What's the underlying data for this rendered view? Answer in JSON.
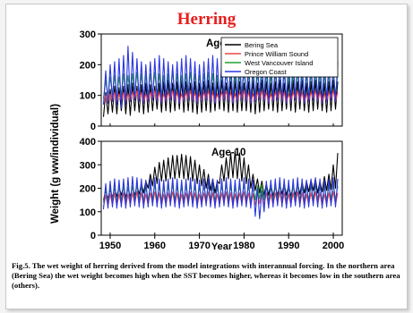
{
  "page": {
    "title": "Herring",
    "caption": "Fig.5. The wet weight of herring derived from the model integrations with interannual forcing. In the northern area (Bering Sea) the wet weight becomes high when the SST becomes higher, whereas it becomes low in the southern area (others)."
  },
  "chart_data": [
    {
      "type": "line",
      "panel_label": "Age-5",
      "ylabel": "Weight (g ww/individual)",
      "xlabel": "",
      "xlim": [
        1948,
        2002
      ],
      "ylim": [
        0,
        300
      ],
      "yticks": [
        0,
        100,
        200,
        300
      ],
      "xticks": [],
      "legend": "top-right",
      "grid": false,
      "series": [
        {
          "name": "Bering Sea",
          "color": "#000000",
          "annual_low": [
            30,
            40,
            45,
            40,
            50,
            40,
            35,
            50,
            45,
            40,
            45,
            50,
            55,
            45,
            50,
            45,
            50,
            55,
            45,
            50,
            45,
            40,
            45,
            50,
            45,
            50,
            55,
            50,
            45,
            50,
            45,
            50,
            50,
            45,
            40,
            45,
            50,
            55,
            50,
            45,
            50,
            55,
            50,
            45,
            55,
            50,
            45,
            50,
            55,
            50,
            45,
            50,
            55
          ],
          "annual_high": [
            110,
            120,
            130,
            125,
            130,
            135,
            140,
            130,
            135,
            140,
            135,
            130,
            140,
            145,
            150,
            140,
            145,
            150,
            145,
            140,
            145,
            140,
            145,
            150,
            140,
            145,
            150,
            140,
            145,
            150,
            145,
            140,
            145,
            150,
            140,
            150,
            145,
            140,
            145,
            150,
            140,
            145,
            150,
            145,
            150,
            140,
            145,
            150,
            145,
            140,
            145,
            150,
            145
          ]
        },
        {
          "name": "Prince William Sound",
          "color": "#e8484c",
          "annual_low": [
            70,
            75,
            80,
            75,
            80,
            75,
            80,
            85,
            80,
            75,
            80,
            85,
            80,
            75,
            80,
            85,
            80,
            75,
            80,
            85,
            80,
            75,
            80,
            85,
            80,
            75,
            80,
            85,
            80,
            75,
            80,
            85,
            80,
            75,
            80,
            85,
            80,
            75,
            80,
            85,
            80,
            75,
            80,
            85,
            80,
            75,
            80,
            85,
            80,
            75,
            80,
            85,
            80
          ],
          "annual_high": [
            100,
            105,
            110,
            105,
            110,
            105,
            110,
            115,
            110,
            105,
            110,
            115,
            110,
            105,
            110,
            115,
            110,
            105,
            110,
            115,
            110,
            105,
            110,
            115,
            110,
            105,
            110,
            115,
            110,
            105,
            110,
            115,
            110,
            105,
            110,
            115,
            110,
            105,
            110,
            115,
            110,
            105,
            110,
            115,
            110,
            105,
            110,
            115,
            110,
            105,
            110,
            115,
            110
          ]
        },
        {
          "name": "West Vancouver Island",
          "color": "#22a032",
          "annual_low": [
            90,
            95,
            100,
            95,
            100,
            95,
            100,
            105,
            100,
            95,
            100,
            105,
            100,
            95,
            100,
            105,
            100,
            95,
            100,
            105,
            100,
            95,
            100,
            105,
            100,
            95,
            100,
            105,
            100,
            95,
            100,
            105,
            100,
            95,
            100,
            105,
            100,
            95,
            100,
            105,
            100,
            95,
            100,
            105,
            100,
            95,
            100,
            105,
            100,
            95,
            100,
            105,
            100
          ],
          "annual_high": [
            150,
            160,
            165,
            160,
            170,
            165,
            170,
            175,
            170,
            165,
            170,
            175,
            170,
            165,
            170,
            175,
            170,
            165,
            170,
            175,
            170,
            165,
            170,
            175,
            170,
            165,
            170,
            175,
            170,
            165,
            170,
            175,
            170,
            165,
            170,
            175,
            170,
            165,
            170,
            175,
            170,
            165,
            170,
            175,
            170,
            165,
            170,
            175,
            170,
            165,
            170,
            175,
            170
          ]
        },
        {
          "name": "Oregon Coast",
          "color": "#2a36e0",
          "annual_low": [
            70,
            75,
            80,
            70,
            60,
            70,
            80,
            85,
            80,
            75,
            80,
            85,
            80,
            75,
            80,
            85,
            80,
            75,
            80,
            85,
            80,
            75,
            80,
            85,
            80,
            75,
            80,
            85,
            80,
            75,
            80,
            85,
            80,
            75,
            80,
            85,
            80,
            75,
            80,
            85,
            80,
            75,
            80,
            85,
            80,
            75,
            80,
            85,
            80,
            75,
            80,
            85,
            80
          ],
          "annual_high": [
            180,
            200,
            210,
            220,
            230,
            260,
            240,
            220,
            210,
            200,
            210,
            220,
            230,
            220,
            210,
            200,
            210,
            220,
            230,
            220,
            210,
            200,
            210,
            220,
            230,
            220,
            210,
            200,
            210,
            220,
            230,
            220,
            210,
            200,
            210,
            220,
            230,
            220,
            210,
            200,
            210,
            220,
            230,
            220,
            210,
            200,
            210,
            220,
            230,
            220,
            210,
            200,
            210
          ]
        }
      ]
    },
    {
      "type": "line",
      "panel_label": "Age-10",
      "xlabel": "Year",
      "ylabel": "",
      "xlim": [
        1948,
        2002
      ],
      "ylim": [
        0,
        400
      ],
      "yticks": [
        0,
        100,
        200,
        300,
        400
      ],
      "xticks": [
        1950,
        1960,
        1970,
        1980,
        1990,
        2000
      ],
      "legend": "none",
      "grid": false,
      "series": [
        {
          "name": "Bering Sea",
          "color": "#000000",
          "annual_low": [
            150,
            155,
            160,
            165,
            170,
            160,
            165,
            170,
            175,
            180,
            200,
            210,
            220,
            230,
            230,
            240,
            240,
            245,
            240,
            235,
            230,
            220,
            210,
            200,
            190,
            180,
            220,
            230,
            240,
            245,
            240,
            230,
            220,
            200,
            190,
            180,
            170,
            170,
            165,
            170,
            175,
            170,
            165,
            170,
            175,
            180,
            185,
            190,
            180,
            185,
            190,
            195,
            200
          ],
          "annual_high": [
            190,
            195,
            200,
            205,
            210,
            200,
            205,
            210,
            220,
            230,
            260,
            290,
            310,
            320,
            330,
            340,
            340,
            345,
            340,
            335,
            320,
            300,
            280,
            260,
            240,
            230,
            300,
            330,
            350,
            360,
            350,
            330,
            300,
            260,
            240,
            230,
            220,
            220,
            210,
            215,
            220,
            215,
            210,
            220,
            225,
            230,
            235,
            240,
            230,
            250,
            260,
            300,
            350
          ]
        },
        {
          "name": "Prince William Sound",
          "color": "#e8484c",
          "annual_low": [
            120,
            125,
            130,
            125,
            130,
            125,
            130,
            135,
            130,
            125,
            130,
            135,
            130,
            125,
            130,
            135,
            130,
            125,
            130,
            135,
            130,
            125,
            130,
            135,
            130,
            125,
            130,
            135,
            130,
            125,
            130,
            135,
            130,
            125,
            130,
            135,
            130,
            125,
            130,
            135,
            130,
            125,
            130,
            135,
            130,
            125,
            130,
            135,
            130,
            125,
            130,
            135,
            130
          ],
          "annual_high": [
            170,
            175,
            180,
            175,
            180,
            175,
            180,
            185,
            180,
            175,
            180,
            185,
            180,
            175,
            180,
            185,
            180,
            175,
            180,
            185,
            180,
            175,
            180,
            185,
            180,
            175,
            180,
            185,
            180,
            175,
            180,
            185,
            180,
            175,
            180,
            185,
            180,
            175,
            180,
            185,
            180,
            175,
            180,
            185,
            180,
            175,
            180,
            185,
            180,
            175,
            180,
            185,
            180
          ]
        },
        {
          "name": "West Vancouver Island",
          "color": "#22a032",
          "annual_low": [
            140,
            145,
            150,
            145,
            150,
            145,
            150,
            155,
            150,
            145,
            150,
            155,
            150,
            145,
            150,
            155,
            150,
            145,
            150,
            155,
            150,
            145,
            150,
            155,
            150,
            145,
            150,
            155,
            150,
            145,
            150,
            155,
            150,
            145,
            150,
            155,
            150,
            145,
            150,
            155,
            150,
            145,
            150,
            155,
            150,
            145,
            150,
            155,
            150,
            145,
            150,
            155,
            150
          ],
          "annual_high": [
            200,
            205,
            210,
            205,
            210,
            205,
            210,
            215,
            210,
            205,
            210,
            215,
            210,
            205,
            210,
            215,
            210,
            205,
            210,
            215,
            210,
            205,
            210,
            215,
            210,
            205,
            210,
            215,
            210,
            205,
            210,
            215,
            210,
            205,
            210,
            215,
            210,
            205,
            210,
            215,
            210,
            205,
            210,
            215,
            210,
            205,
            210,
            215,
            210,
            205,
            210,
            215,
            210
          ]
        },
        {
          "name": "Oregon Coast",
          "color": "#2a36e0",
          "annual_low": [
            110,
            115,
            120,
            115,
            120,
            115,
            120,
            125,
            120,
            115,
            120,
            125,
            120,
            115,
            120,
            125,
            120,
            115,
            120,
            125,
            120,
            115,
            120,
            125,
            120,
            115,
            120,
            125,
            120,
            115,
            120,
            125,
            120,
            115,
            80,
            70,
            100,
            115,
            120,
            125,
            120,
            115,
            120,
            125,
            120,
            115,
            120,
            125,
            120,
            115,
            120,
            125,
            120
          ],
          "annual_high": [
            220,
            230,
            240,
            235,
            240,
            245,
            250,
            245,
            240,
            235,
            240,
            245,
            240,
            235,
            240,
            245,
            240,
            235,
            240,
            245,
            240,
            235,
            240,
            245,
            240,
            235,
            240,
            245,
            240,
            235,
            240,
            245,
            240,
            235,
            200,
            190,
            230,
            235,
            240,
            245,
            240,
            235,
            240,
            245,
            240,
            235,
            240,
            245,
            240,
            235,
            240,
            245,
            240
          ]
        }
      ]
    }
  ]
}
